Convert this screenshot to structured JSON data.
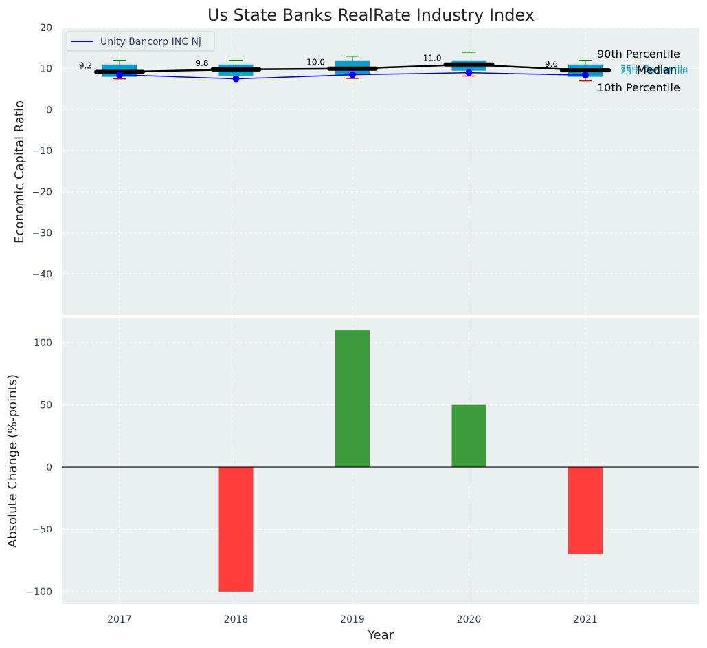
{
  "chart_data": [
    {
      "type": "box",
      "title": "Us State Banks RealRate Industry Index",
      "ylabel": "Economic Capital Ratio",
      "ylim": [
        -50,
        20
      ],
      "yticks": [
        20,
        10,
        0,
        -10,
        -20,
        -30,
        -40
      ],
      "grid": true,
      "legend": {
        "position": "top-left",
        "entries": [
          "Unity Bancorp INC Nj"
        ]
      },
      "categories": [
        "2017",
        "2018",
        "2019",
        "2020",
        "2021"
      ],
      "boxes": [
        {
          "year": "2017",
          "p10": 7.5,
          "q1": 8.0,
          "median": 9.2,
          "q3": 11.0,
          "p90": 12.0
        },
        {
          "year": "2018",
          "p10": 7.6,
          "q1": 8.3,
          "median": 9.8,
          "q3": 11.0,
          "p90": 12.0
        },
        {
          "year": "2019",
          "p10": 7.6,
          "q1": 8.5,
          "median": 10.0,
          "q3": 12.0,
          "p90": 13.0
        },
        {
          "year": "2020",
          "p10": 8.2,
          "q1": 9.5,
          "median": 11.0,
          "q3": 12.0,
          "p90": 14.0
        },
        {
          "year": "2021",
          "p10": 7.0,
          "q1": 8.0,
          "median": 9.6,
          "q3": 11.0,
          "p90": 12.0
        }
      ],
      "median_labels": [
        "9.2",
        "9.8",
        "10.0",
        "11.0",
        "9.6"
      ],
      "series": [
        {
          "name": "Unity Bancorp INC Nj",
          "values": [
            8.5,
            7.5,
            8.5,
            9.0,
            8.4
          ]
        }
      ],
      "annotations": {
        "p90": "90th Percentile",
        "q3": "75th Percentile",
        "median": "Median",
        "q1": "25th Percentile",
        "p10": "10th Percentile"
      }
    },
    {
      "type": "bar",
      "xlabel": "Year",
      "ylabel": "Absolute Change (%-points)",
      "ylim": [
        -110,
        120
      ],
      "yticks": [
        100,
        50,
        0,
        -50,
        -100
      ],
      "grid": true,
      "categories": [
        "2017",
        "2018",
        "2019",
        "2020",
        "2021"
      ],
      "values": [
        0,
        -100,
        110,
        50,
        -70
      ]
    }
  ],
  "colors": {
    "background": "#ffffff",
    "plot_bg": "#eaeff0",
    "box": "#0e9ccb",
    "series_line": "#0000ff",
    "median_line": "#000000",
    "whisker_high": "#008000",
    "whisker_low": "#e00000",
    "bar_positive": "#3b9b3b",
    "bar_negative": "#ff3d3d"
  }
}
